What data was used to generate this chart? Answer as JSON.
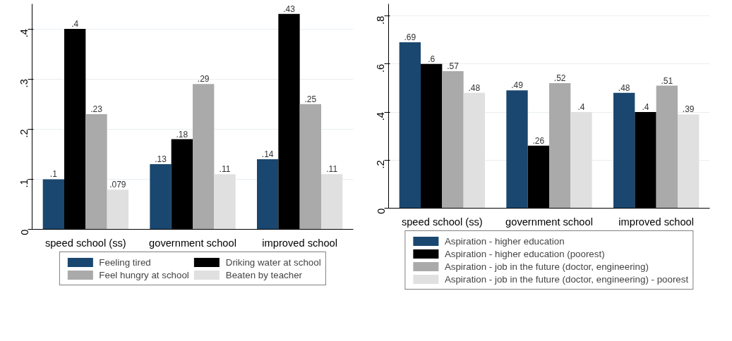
{
  "chart_data": [
    {
      "type": "bar",
      "categories": [
        "speed school (ss)",
        "government school",
        "improved school"
      ],
      "series": [
        {
          "name": "Feeling tired",
          "color": "#1a476f",
          "values": [
            0.1,
            0.13,
            0.14
          ],
          "value_labels": [
            ".1",
            ".13",
            ".14"
          ]
        },
        {
          "name": "Driking water at school",
          "color": "#000000",
          "values": [
            0.4,
            0.18,
            0.43
          ],
          "value_labels": [
            ".4",
            ".18",
            ".43"
          ]
        },
        {
          "name": "Feel hungry at school",
          "color": "#aaaaaa",
          "values": [
            0.23,
            0.29,
            0.25
          ],
          "value_labels": [
            ".23",
            ".29",
            ".25"
          ]
        },
        {
          "name": "Beaten by teacher",
          "color": "#e0e0e0",
          "values": [
            0.079,
            0.11,
            0.11
          ],
          "value_labels": [
            ".079",
            ".11",
            ".11"
          ]
        }
      ],
      "ylim": [
        0,
        0.45
      ],
      "yticks": [
        0,
        {
          "value": 0.1,
          "label": ".1"
        },
        {
          "value": 0.2,
          "label": ".2"
        },
        {
          "value": 0.3,
          "label": ".3"
        },
        {
          "value": 0.4,
          "label": ".4"
        }
      ],
      "grid": "y",
      "legend": "bottom"
    },
    {
      "type": "bar",
      "categories": [
        "speed school (ss)",
        "government school",
        "improved school"
      ],
      "series": [
        {
          "name": "Aspiration - higher education",
          "color": "#1a476f",
          "values": [
            0.69,
            0.49,
            0.48
          ],
          "value_labels": [
            ".69",
            ".49",
            ".48"
          ]
        },
        {
          "name": "Aspiration - higher education (poorest)",
          "color": "#000000",
          "values": [
            0.6,
            0.26,
            0.4
          ],
          "value_labels": [
            ".6",
            ".26",
            ".4"
          ]
        },
        {
          "name": "Aspiration - job in the future (doctor, engineering)",
          "color": "#aaaaaa",
          "values": [
            0.57,
            0.52,
            0.51
          ],
          "value_labels": [
            ".57",
            ".52",
            ".51"
          ]
        },
        {
          "name": "Aspiration - job in the future (doctor, engineering) - poorest",
          "color": "#e0e0e0",
          "values": [
            0.48,
            0.4,
            0.39
          ],
          "value_labels": [
            ".48",
            ".4",
            ".39"
          ]
        }
      ],
      "ylim": [
        0,
        0.85
      ],
      "yticks": [
        0,
        {
          "value": 0.2,
          "label": ".2"
        },
        {
          "value": 0.4,
          "label": ".4"
        },
        {
          "value": 0.6,
          "label": ".6"
        },
        {
          "value": 0.8,
          "label": ".8"
        }
      ],
      "grid": "y",
      "legend": "bottom"
    }
  ]
}
